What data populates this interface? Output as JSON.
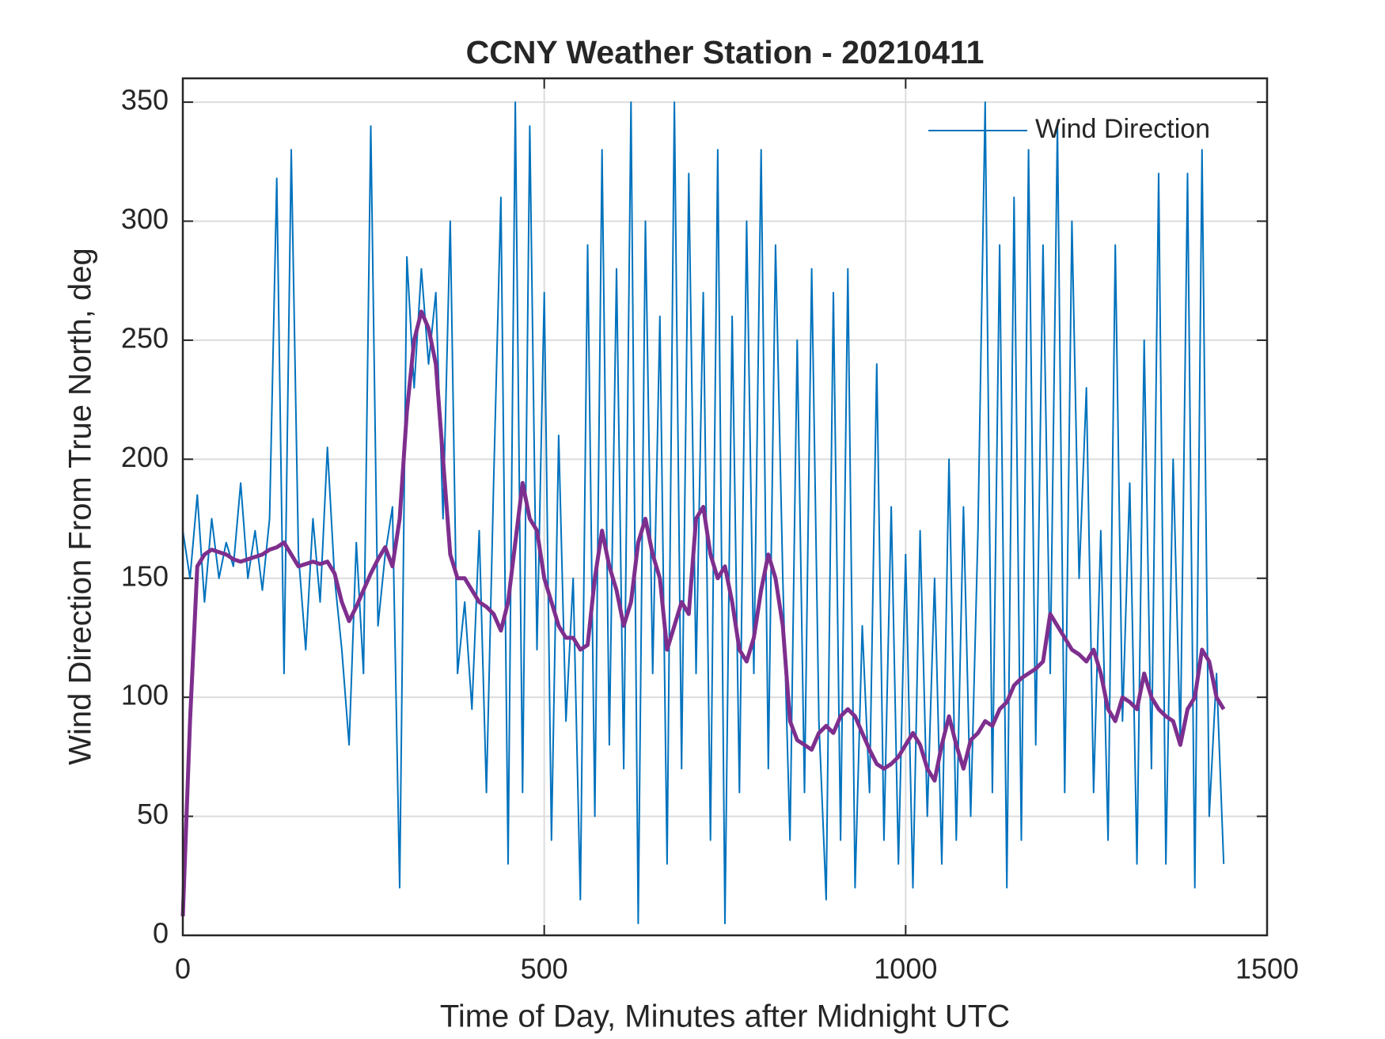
{
  "chart_data": {
    "type": "line",
    "title": "CCNY Weather Station - 20210411",
    "xlabel": "Time of Day, Minutes after Midnight UTC",
    "ylabel": "Wind Direction From True North, deg",
    "x": [
      0,
      10,
      20,
      30,
      40,
      50,
      60,
      70,
      80,
      90,
      100,
      110,
      120,
      130,
      140,
      150,
      160,
      170,
      180,
      190,
      200,
      210,
      220,
      230,
      240,
      250,
      260,
      270,
      280,
      290,
      300,
      310,
      320,
      330,
      340,
      350,
      360,
      370,
      380,
      390,
      400,
      410,
      420,
      430,
      440,
      450,
      460,
      470,
      480,
      490,
      500,
      510,
      520,
      530,
      540,
      550,
      560,
      570,
      580,
      590,
      600,
      610,
      620,
      630,
      640,
      650,
      660,
      670,
      680,
      690,
      700,
      710,
      720,
      730,
      740,
      750,
      760,
      770,
      780,
      790,
      800,
      810,
      820,
      830,
      840,
      850,
      860,
      870,
      880,
      890,
      900,
      910,
      920,
      930,
      940,
      950,
      960,
      970,
      980,
      990,
      1000,
      1010,
      1020,
      1030,
      1040,
      1050,
      1060,
      1070,
      1080,
      1090,
      1100,
      1110,
      1120,
      1130,
      1140,
      1150,
      1160,
      1170,
      1180,
      1190,
      1200,
      1210,
      1220,
      1230,
      1240,
      1250,
      1260,
      1270,
      1280,
      1290,
      1300,
      1310,
      1320,
      1330,
      1340,
      1350,
      1360,
      1370,
      1380,
      1390,
      1400,
      1410,
      1420,
      1430,
      1440
    ],
    "series": [
      {
        "name": "Wind Direction",
        "color": "#0072bd",
        "values": [
          170,
          150,
          185,
          140,
          175,
          150,
          165,
          155,
          190,
          150,
          170,
          145,
          175,
          318,
          110,
          330,
          160,
          120,
          175,
          140,
          205,
          150,
          120,
          80,
          165,
          110,
          340,
          130,
          160,
          180,
          20,
          285,
          230,
          280,
          240,
          270,
          175,
          300,
          110,
          140,
          95,
          170,
          60,
          190,
          310,
          30,
          350,
          60,
          340,
          120,
          270,
          40,
          210,
          90,
          150,
          15,
          290,
          50,
          330,
          80,
          280,
          70,
          350,
          5,
          300,
          110,
          260,
          30,
          350,
          70,
          320,
          110,
          270,
          40,
          330,
          5,
          260,
          60,
          300,
          110,
          330,
          70,
          290,
          150,
          40,
          250,
          60,
          280,
          90,
          15,
          270,
          40,
          280,
          20,
          130,
          60,
          240,
          40,
          180,
          30,
          160,
          20,
          170,
          50,
          150,
          30,
          200,
          40,
          180,
          50,
          170,
          350,
          60,
          290,
          20,
          310,
          40,
          330,
          80,
          290,
          110,
          340,
          60,
          300,
          150,
          230,
          60,
          170,
          40,
          290,
          90,
          190,
          30,
          250,
          70,
          320,
          30,
          200,
          80,
          320,
          20,
          330,
          50,
          110,
          30
        ]
      },
      {
        "color": "#7e2f8e",
        "values": [
          8,
          90,
          155,
          160,
          162,
          161,
          160,
          158,
          157,
          158,
          159,
          160,
          162,
          163,
          165,
          160,
          155,
          156,
          157,
          156,
          157,
          152,
          140,
          132,
          138,
          145,
          152,
          158,
          163,
          155,
          175,
          220,
          250,
          262,
          255,
          240,
          200,
          160,
          150,
          150,
          145,
          140,
          138,
          135,
          128,
          140,
          165,
          190,
          175,
          170,
          150,
          140,
          130,
          125,
          125,
          120,
          122,
          150,
          170,
          155,
          145,
          130,
          140,
          165,
          175,
          160,
          150,
          120,
          130,
          140,
          135,
          175,
          180,
          160,
          150,
          155,
          140,
          120,
          115,
          125,
          145,
          160,
          150,
          130,
          90,
          82,
          80,
          78,
          85,
          88,
          85,
          92,
          95,
          92,
          85,
          78,
          72,
          70,
          72,
          75,
          80,
          85,
          80,
          70,
          65,
          80,
          92,
          80,
          70,
          82,
          85,
          90,
          88,
          95,
          98,
          105,
          108,
          110,
          112,
          115,
          135,
          130,
          125,
          120,
          118,
          115,
          120,
          110,
          95,
          90,
          100,
          98,
          95,
          110,
          100,
          95,
          92,
          90,
          80,
          95,
          100,
          120,
          115,
          100,
          95
        ]
      }
    ],
    "xlim": [
      0,
      1500
    ],
    "xticks": [
      0,
      500,
      1000,
      1500
    ],
    "ylim": [
      0,
      360
    ],
    "yticks": [
      0,
      50,
      100,
      150,
      200,
      250,
      300,
      350
    ],
    "grid": true,
    "legend": "upper right"
  }
}
